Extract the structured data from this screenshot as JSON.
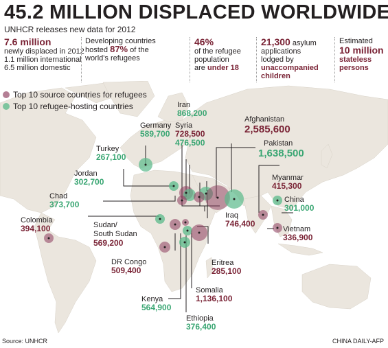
{
  "title": "45.2 MILLION DISPLACED WORLDWIDE",
  "subtitle": "UNHCR releases new data for 2012",
  "facts": [
    {
      "big": "7.6 million",
      "l1": "newly displaced in 2012",
      "l2": "1.1 million international",
      "l3": "6.5 million domestic"
    },
    {
      "pre": "Developing countries",
      "mid_pre": "hosted ",
      "hl": "87%",
      "mid_post": " of the",
      "post": "world's refugees"
    },
    {
      "big": "46%",
      "l1": "of the refugee",
      "l2": "population",
      "l3_pre": "are ",
      "l3_hl": "under 18"
    },
    {
      "big": "21,300",
      "big_post": " asylum",
      "l1": "applications",
      "l2": "lodged by",
      "hl1": "unaccompanied",
      "hl2": "children"
    },
    {
      "l1": "Estimated",
      "big": "10 million",
      "hl": "stateless",
      "hl2": "persons"
    }
  ],
  "legend": {
    "source": "Top 10 source countries for refugees",
    "host": "Top 10 refugee-hosting countries"
  },
  "colors": {
    "source": "#8c3a5c",
    "host": "#5ab98a",
    "land": "#ebe6de",
    "text_accent": "#7a2436"
  },
  "chart_data": {
    "type": "bubble-map",
    "source_countries": [
      {
        "name": "Afghanistan",
        "value": "2,585,600"
      },
      {
        "name": "Somalia",
        "value": "1,136,100"
      },
      {
        "name": "Iraq",
        "value": "746,400"
      },
      {
        "name": "Syria",
        "value": "728,500"
      },
      {
        "name": "Sudan/",
        "name2": "South Sudan",
        "value": "569,200"
      },
      {
        "name": "DR Congo",
        "value": "509,400"
      },
      {
        "name": "Myanmar",
        "value": "415,300"
      },
      {
        "name": "Colombia",
        "value": "394,100"
      },
      {
        "name": "Vietnam",
        "value": "336,900"
      },
      {
        "name": "Eritrea",
        "value": "285,100"
      }
    ],
    "host_countries": [
      {
        "name": "Pakistan",
        "value": "1,638,500"
      },
      {
        "name": "Iran",
        "value": "868,200"
      },
      {
        "name": "Germany",
        "value": "589,700"
      },
      {
        "name": "Kenya",
        "value": "564,900"
      },
      {
        "name": "Syria",
        "value": "476,500"
      },
      {
        "name": "Ethiopia",
        "value": "376,400"
      },
      {
        "name": "Chad",
        "value": "373,700"
      },
      {
        "name": "Jordan",
        "value": "302,700"
      },
      {
        "name": "China",
        "value": "301,000"
      },
      {
        "name": "Turkey",
        "value": "267,100"
      }
    ]
  },
  "footer": {
    "source": "Source: UNHCR",
    "credit": "CHINA DAILY-AFP"
  }
}
